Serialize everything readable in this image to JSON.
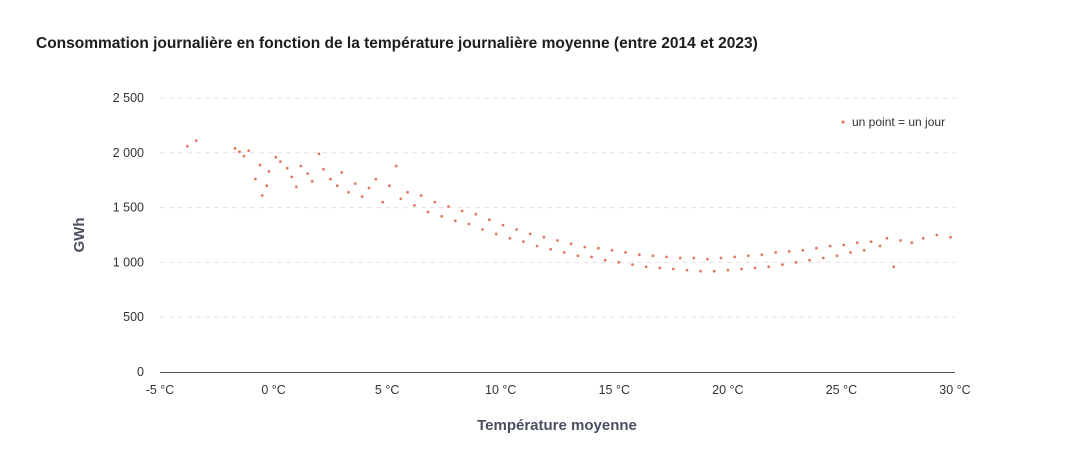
{
  "chart_data": {
    "type": "scatter",
    "title": "Consommation journalière en fonction de la température journalière moyenne (entre 2014 et 2023)",
    "xlabel": "Température moyenne",
    "ylabel": "GWh",
    "xlim": [
      -5,
      30
    ],
    "ylim": [
      0,
      2500
    ],
    "x_ticks": [
      -5,
      0,
      5,
      10,
      15,
      20,
      25,
      30
    ],
    "x_tick_labels": [
      "-5 °C",
      "0 °C",
      "5 °C",
      "10 °C",
      "15 °C",
      "20 °C",
      "25 °C",
      "30 °C"
    ],
    "y_ticks": [
      0,
      500,
      1000,
      1500,
      2000,
      2500
    ],
    "y_tick_labels": [
      "0",
      "500",
      "1 000",
      "1 500",
      "2 000",
      "2 500"
    ],
    "grid": "horizontal dashed",
    "legend": {
      "label": "un point = un jour",
      "position": "top-right"
    },
    "color": "#e07b5f",
    "series": [
      {
        "name": "un point = un jour",
        "points": [
          [
            -3.8,
            2060
          ],
          [
            -3.4,
            2110
          ],
          [
            -1.7,
            2040
          ],
          [
            -1.5,
            2010
          ],
          [
            -1.3,
            1970
          ],
          [
            -1.1,
            2020
          ],
          [
            -0.8,
            1760
          ],
          [
            -0.6,
            1890
          ],
          [
            -0.5,
            1610
          ],
          [
            -0.3,
            1700
          ],
          [
            -0.2,
            1830
          ],
          [
            0.1,
            1960
          ],
          [
            0.3,
            1920
          ],
          [
            0.6,
            1860
          ],
          [
            0.8,
            1780
          ],
          [
            1.0,
            1690
          ],
          [
            1.2,
            1880
          ],
          [
            1.5,
            1810
          ],
          [
            1.7,
            1740
          ],
          [
            2.0,
            1990
          ],
          [
            2.2,
            1850
          ],
          [
            2.5,
            1760
          ],
          [
            2.8,
            1700
          ],
          [
            3.0,
            1820
          ],
          [
            3.3,
            1640
          ],
          [
            3.6,
            1720
          ],
          [
            3.9,
            1600
          ],
          [
            4.2,
            1680
          ],
          [
            4.5,
            1760
          ],
          [
            4.8,
            1550
          ],
          [
            5.1,
            1700
          ],
          [
            5.4,
            1880
          ],
          [
            5.6,
            1580
          ],
          [
            5.9,
            1640
          ],
          [
            6.2,
            1520
          ],
          [
            6.5,
            1610
          ],
          [
            6.8,
            1460
          ],
          [
            7.1,
            1550
          ],
          [
            7.4,
            1420
          ],
          [
            7.7,
            1510
          ],
          [
            8.0,
            1380
          ],
          [
            8.3,
            1470
          ],
          [
            8.6,
            1350
          ],
          [
            8.9,
            1440
          ],
          [
            9.2,
            1300
          ],
          [
            9.5,
            1390
          ],
          [
            9.8,
            1260
          ],
          [
            10.1,
            1340
          ],
          [
            10.4,
            1220
          ],
          [
            10.7,
            1300
          ],
          [
            11.0,
            1190
          ],
          [
            11.3,
            1260
          ],
          [
            11.6,
            1150
          ],
          [
            11.9,
            1230
          ],
          [
            12.2,
            1120
          ],
          [
            12.5,
            1200
          ],
          [
            12.8,
            1090
          ],
          [
            13.1,
            1170
          ],
          [
            13.4,
            1060
          ],
          [
            13.7,
            1140
          ],
          [
            14.0,
            1050
          ],
          [
            14.3,
            1130
          ],
          [
            14.6,
            1020
          ],
          [
            14.9,
            1110
          ],
          [
            15.2,
            1000
          ],
          [
            15.5,
            1090
          ],
          [
            15.8,
            980
          ],
          [
            16.1,
            1070
          ],
          [
            16.4,
            960
          ],
          [
            16.7,
            1060
          ],
          [
            17.0,
            950
          ],
          [
            17.3,
            1050
          ],
          [
            17.6,
            940
          ],
          [
            17.9,
            1040
          ],
          [
            18.2,
            930
          ],
          [
            18.5,
            1040
          ],
          [
            18.8,
            920
          ],
          [
            19.1,
            1030
          ],
          [
            19.4,
            920
          ],
          [
            19.7,
            1040
          ],
          [
            20.0,
            930
          ],
          [
            20.3,
            1050
          ],
          [
            20.6,
            940
          ],
          [
            20.9,
            1060
          ],
          [
            21.2,
            950
          ],
          [
            21.5,
            1070
          ],
          [
            21.8,
            960
          ],
          [
            22.1,
            1090
          ],
          [
            22.4,
            980
          ],
          [
            22.7,
            1100
          ],
          [
            23.0,
            1000
          ],
          [
            23.3,
            1110
          ],
          [
            23.6,
            1020
          ],
          [
            23.9,
            1130
          ],
          [
            24.2,
            1040
          ],
          [
            24.5,
            1150
          ],
          [
            24.8,
            1060
          ],
          [
            25.1,
            1160
          ],
          [
            25.4,
            1090
          ],
          [
            25.7,
            1180
          ],
          [
            26.0,
            1110
          ],
          [
            26.3,
            1190
          ],
          [
            26.7,
            1150
          ],
          [
            27.0,
            1220
          ],
          [
            27.3,
            960
          ],
          [
            27.6,
            1200
          ],
          [
            28.1,
            1180
          ],
          [
            28.6,
            1220
          ],
          [
            29.2,
            1250
          ],
          [
            29.8,
            1230
          ]
        ]
      }
    ]
  }
}
